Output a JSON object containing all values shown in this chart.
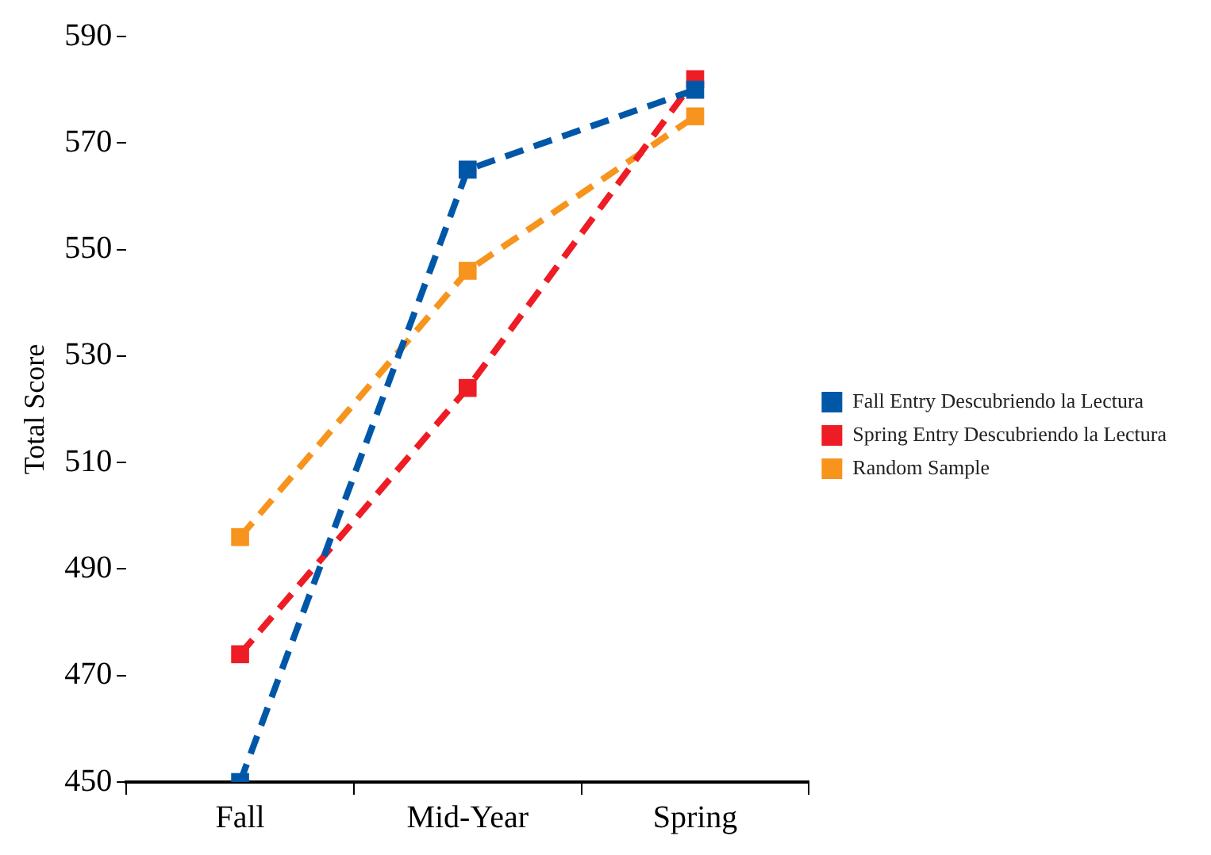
{
  "chart_data": {
    "type": "line",
    "ylabel": "Total Score",
    "categories": [
      "Fall",
      "Mid-Year",
      "Spring"
    ],
    "series": [
      {
        "name": "Fall Entry Descubriendo la Lectura",
        "color": "#0057a8",
        "values": [
          450,
          565,
          580
        ]
      },
      {
        "name": "Spring Entry Descubriendo la Lectura",
        "color": "#ee1c25",
        "values": [
          474,
          524,
          582
        ]
      },
      {
        "name": "Random Sample",
        "color": "#f7941d",
        "values": [
          496,
          546,
          575
        ]
      }
    ],
    "ylim": [
      450,
      590
    ],
    "yticks": [
      450,
      470,
      490,
      510,
      530,
      550,
      570,
      590
    ],
    "grid": false,
    "legend": "right",
    "marker": "square",
    "line_style": "dashed"
  }
}
